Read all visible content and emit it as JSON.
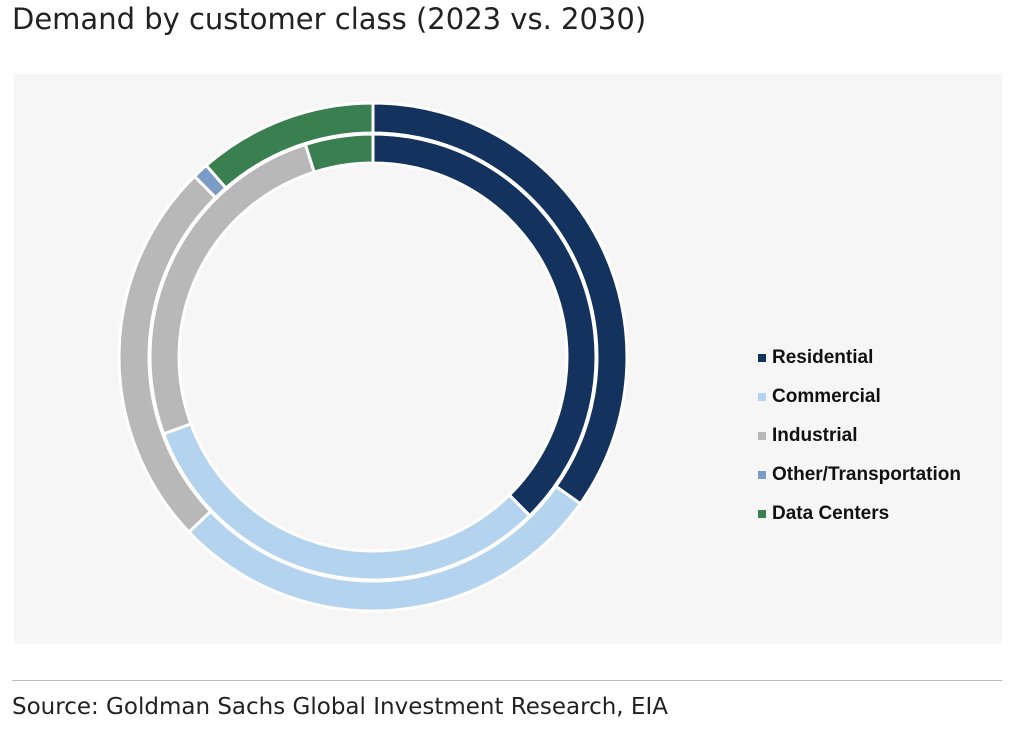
{
  "title": "Demand by customer class (2023 vs. 2030)",
  "source": "Source: Goldman Sachs Global Investment Research, EIA",
  "chart_data": {
    "type": "pie",
    "subtype": "double-donut",
    "title": "Demand by customer class (2023 vs. 2030)",
    "categories": [
      "Residential",
      "Commercial",
      "Industrial",
      "Other/Transportation",
      "Data Centers"
    ],
    "colors": [
      "#13335e",
      "#b4d3ee",
      "#b8b8b8",
      "#7b9cc6",
      "#3a7f50"
    ],
    "series": [
      {
        "name": "2023 (inner ring)",
        "values": [
          37.6,
          31.8,
          25.7,
          0,
          4.9
        ]
      },
      {
        "name": "2030 (outer ring)",
        "values": [
          34.8,
          28.1,
          24.7,
          1.0,
          11.4
        ]
      }
    ],
    "legend_position": "right"
  }
}
